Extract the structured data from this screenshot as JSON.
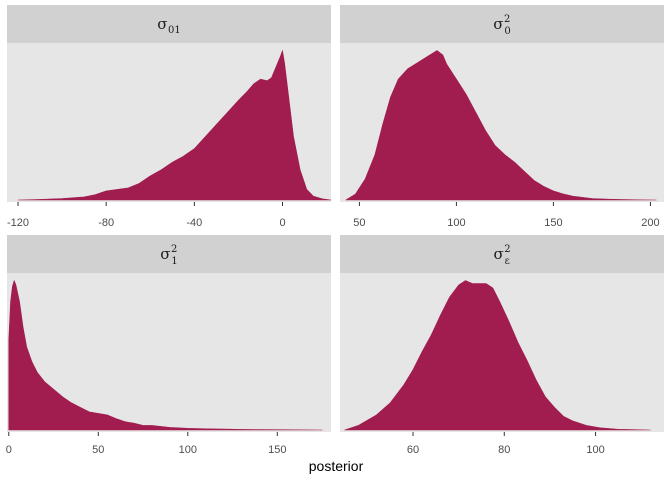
{
  "chart_data": {
    "type": "area",
    "xlabel": "posterior",
    "fill_color": "#A11C4F",
    "panel_background": "#E6E6E6",
    "strip_background": "#D1D1D1",
    "grid": false,
    "panels": [
      {
        "strip": {
          "base": "σ",
          "sub": "01",
          "sup": ""
        },
        "xlim": [
          -125,
          22
        ],
        "ticks": [
          -120,
          -80,
          -40,
          0
        ],
        "x": [
          -120,
          -110,
          -100,
          -90,
          -85,
          -80,
          -75,
          -70,
          -65,
          -60,
          -55,
          -50,
          -45,
          -40,
          -35,
          -30,
          -25,
          -20,
          -16,
          -13,
          -10,
          -7,
          -5,
          -3,
          -1,
          0,
          1,
          3,
          5,
          8,
          11,
          14,
          18,
          22
        ],
        "y": [
          0.0,
          0.004,
          0.01,
          0.02,
          0.035,
          0.06,
          0.07,
          0.08,
          0.11,
          0.16,
          0.2,
          0.25,
          0.29,
          0.34,
          0.42,
          0.5,
          0.58,
          0.66,
          0.72,
          0.77,
          0.8,
          0.79,
          0.81,
          0.88,
          0.95,
          0.99,
          0.9,
          0.66,
          0.42,
          0.2,
          0.07,
          0.025,
          0.008,
          0.0
        ]
      },
      {
        "strip": {
          "base": "σ",
          "sub": "0",
          "sup": "2"
        },
        "xlim": [
          40,
          207
        ],
        "ticks": [
          50,
          100,
          150,
          200
        ],
        "x": [
          43,
          48,
          53,
          58,
          62,
          66,
          70,
          75,
          80,
          85,
          90,
          93,
          95,
          100,
          105,
          110,
          115,
          120,
          125,
          130,
          135,
          140,
          145,
          150,
          155,
          160,
          170,
          180,
          190,
          203
        ],
        "y": [
          0.0,
          0.04,
          0.14,
          0.3,
          0.5,
          0.68,
          0.8,
          0.87,
          0.91,
          0.95,
          0.99,
          0.96,
          0.9,
          0.8,
          0.7,
          0.58,
          0.46,
          0.36,
          0.3,
          0.25,
          0.19,
          0.13,
          0.09,
          0.06,
          0.04,
          0.025,
          0.01,
          0.005,
          0.002,
          0.0
        ]
      },
      {
        "strip": {
          "base": "σ",
          "sub": "1",
          "sup": "2"
        },
        "xlim": [
          -1,
          180
        ],
        "ticks": [
          0,
          50,
          100,
          150
        ],
        "x": [
          0,
          1,
          2,
          3,
          4,
          6,
          8,
          10,
          13,
          16,
          20,
          25,
          30,
          35,
          40,
          45,
          50,
          55,
          60,
          65,
          70,
          75,
          80,
          90,
          100,
          110,
          120,
          130,
          140,
          150,
          160,
          175
        ],
        "y": [
          0.6,
          0.85,
          0.95,
          0.99,
          0.96,
          0.85,
          0.68,
          0.55,
          0.45,
          0.38,
          0.32,
          0.27,
          0.22,
          0.18,
          0.15,
          0.12,
          0.11,
          0.1,
          0.075,
          0.055,
          0.045,
          0.03,
          0.03,
          0.017,
          0.011,
          0.008,
          0.006,
          0.004,
          0.003,
          0.002,
          0.001,
          0.0
        ]
      },
      {
        "strip": {
          "base": "σ",
          "sub": "ε",
          "sup": "2"
        },
        "xlim": [
          44,
          115
        ],
        "ticks": [
          60,
          80,
          100
        ],
        "x": [
          45,
          48,
          52,
          55,
          58,
          60,
          62,
          64,
          66,
          68,
          70,
          71.5,
          73,
          74.5,
          76,
          77.5,
          79,
          81,
          83,
          85,
          87,
          89,
          91,
          93,
          95,
          98,
          101,
          105,
          112
        ],
        "y": [
          0.0,
          0.03,
          0.1,
          0.18,
          0.3,
          0.4,
          0.52,
          0.63,
          0.76,
          0.88,
          0.96,
          0.99,
          0.97,
          0.97,
          0.97,
          0.94,
          0.85,
          0.72,
          0.58,
          0.46,
          0.33,
          0.22,
          0.15,
          0.09,
          0.06,
          0.03,
          0.015,
          0.005,
          0.0
        ]
      }
    ]
  }
}
